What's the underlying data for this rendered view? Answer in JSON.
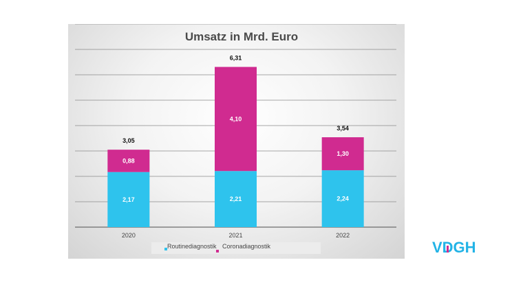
{
  "chart_data": {
    "type": "bar",
    "stacked": true,
    "title": "Umsatz in Mrd. Euro",
    "categories": [
      "2020",
      "2021",
      "2022"
    ],
    "series": [
      {
        "name": "Routinediagnostik",
        "values": [
          2.17,
          2.21,
          2.24
        ],
        "labels": [
          "2,17",
          "2,21",
          "2,24"
        ],
        "color": "#2ec3ed"
      },
      {
        "name": "Coronadiagnostik",
        "values": [
          0.88,
          4.1,
          1.3
        ],
        "labels": [
          "0,88",
          "4,10",
          "1,30"
        ],
        "color": "#d02b90"
      }
    ],
    "totals": [
      3.05,
      6.31,
      3.54
    ],
    "total_labels": [
      "3,05",
      "6,31",
      "3,54"
    ],
    "ylim": [
      0,
      8
    ],
    "grid": true,
    "legend": "bottom"
  },
  "logo": {
    "text": "VDGH",
    "color": "#22b3e6",
    "accent": "#d02b90"
  }
}
